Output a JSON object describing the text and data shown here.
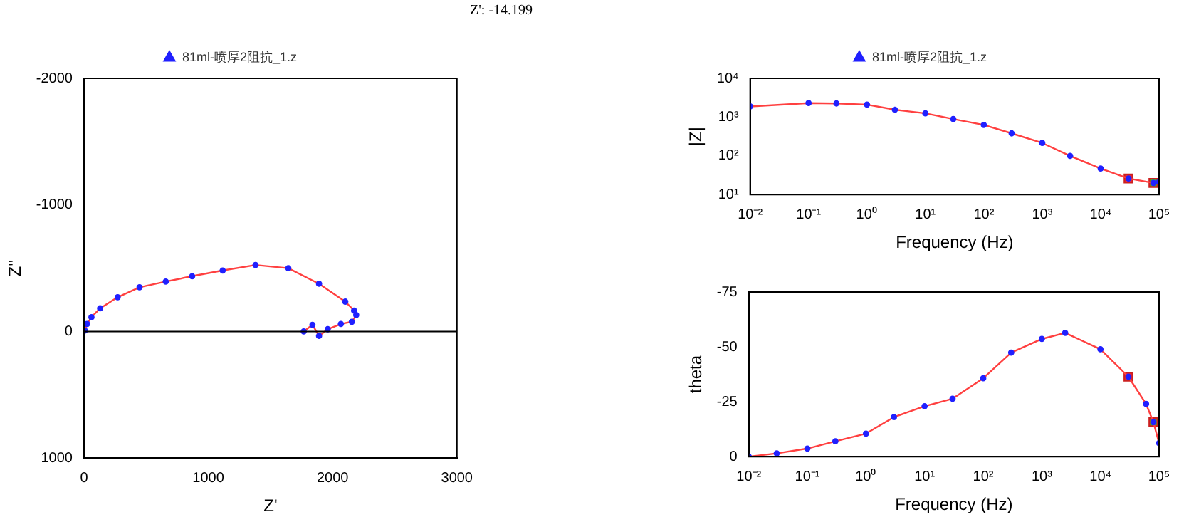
{
  "chart_data": [
    {
      "type": "line",
      "xlabel": "Z'",
      "ylabel": "Z''",
      "legend": "top",
      "marker": "circle",
      "grid": false,
      "annotations": [
        "Z': -14.199"
      ],
      "xlim": [
        0,
        3000
      ],
      "xticks": [
        0,
        1000,
        2000,
        3000
      ],
      "ylim": [
        1000,
        -2000
      ],
      "yticks": [
        1000,
        0,
        -1000,
        -2000
      ],
      "ref_lines": [
        {
          "axis": "y",
          "value": 0,
          "color": "#000000"
        }
      ],
      "series": [
        {
          "name": "81ml-喷厚2阻抗_1.z",
          "color": "#ff4040",
          "x": [
            7,
            25,
            60,
            130,
            271,
            447,
            658,
            870,
            1116,
            1380,
            1644,
            1891,
            2102,
            2173,
            2190,
            2155,
            2067,
            1961,
            1891,
            1838,
            1768
          ],
          "values": [
            -7,
            -60,
            -113,
            -183,
            -271,
            -349,
            -394,
            -437,
            -482,
            -525,
            -500,
            -377,
            -236,
            -165,
            -130,
            -77,
            -60,
            -18,
            35,
            -53,
            0
          ]
        }
      ]
    },
    {
      "type": "line",
      "xlabel": "Frequency (Hz)",
      "ylabel": "|Z|",
      "legend": "top",
      "log": "xy",
      "marker": "circle",
      "grid": false,
      "xlim": [
        0.01,
        100000
      ],
      "xticks": [
        {
          "value": 0.01,
          "label": "10⁻²"
        },
        {
          "value": 0.1,
          "label": "10⁻¹"
        },
        {
          "value": 1,
          "label": "10⁰"
        },
        {
          "value": 10,
          "label": "10¹"
        },
        {
          "value": 100,
          "label": "10²"
        },
        {
          "value": 1000,
          "label": "10³"
        },
        {
          "value": 10000,
          "label": "10⁴"
        },
        {
          "value": 100000,
          "label": "10⁵"
        }
      ],
      "ylim": [
        10,
        10000
      ],
      "yticks": [
        {
          "value": 10,
          "label": "10¹"
        },
        {
          "value": 100,
          "label": "10²"
        },
        {
          "value": 1000,
          "label": "10³"
        },
        {
          "value": 10000,
          "label": "10⁴"
        }
      ],
      "series": [
        {
          "name": "81ml-喷厚2阻抗_1.z",
          "color": "#ff4040",
          "x": [
            0.01,
            0.1,
            0.3,
            1,
            3,
            10,
            30,
            100,
            300,
            1000,
            3000,
            10000,
            30000,
            80000,
            100000
          ],
          "values": [
            1880,
            2300,
            2250,
            2100,
            1550,
            1250,
            890,
            630,
            380,
            215,
            100,
            47,
            26,
            20,
            21
          ]
        },
        {
          "type": "scatter",
          "marker": "square",
          "color": "#ff3030",
          "x": [
            30000
          ],
          "values": [
            26
          ]
        },
        {
          "type": "scatter",
          "marker": "square",
          "color": "#22dd22",
          "x": [
            80000
          ],
          "values": [
            20
          ]
        }
      ]
    },
    {
      "type": "line",
      "xlabel": "Frequency (Hz)",
      "ylabel": "theta",
      "log": "x",
      "marker": "circle",
      "grid": false,
      "xlim": [
        0.01,
        100000
      ],
      "xticks": [
        {
          "value": 0.01,
          "label": "10⁻²"
        },
        {
          "value": 0.1,
          "label": "10⁻¹"
        },
        {
          "value": 1,
          "label": "10⁰"
        },
        {
          "value": 10,
          "label": "10¹"
        },
        {
          "value": 100,
          "label": "10²"
        },
        {
          "value": 1000,
          "label": "10³"
        },
        {
          "value": 10000,
          "label": "10⁴"
        },
        {
          "value": 100000,
          "label": "10⁵"
        }
      ],
      "ylim": [
        0,
        -75
      ],
      "yticks": [
        0,
        -25,
        -50,
        -75
      ],
      "series": [
        {
          "color": "#ff4040",
          "x": [
            0.01,
            0.03,
            0.1,
            0.3,
            1,
            3,
            10,
            30,
            100,
            300,
            1000,
            2500,
            10000,
            30000,
            60000,
            80000,
            100000
          ],
          "values": [
            0,
            -1.5,
            -3.7,
            -7,
            -10.5,
            -18,
            -23,
            -26.4,
            -35.7,
            -47.4,
            -53.6,
            -56.4,
            -48.9,
            -36.4,
            -24,
            -15.7,
            -6.2
          ]
        },
        {
          "type": "scatter",
          "marker": "square",
          "color": "#ff3030",
          "x": [
            30000
          ],
          "values": [
            -36.4
          ]
        },
        {
          "type": "scatter",
          "marker": "square",
          "color": "#22dd22",
          "x": [
            80000
          ],
          "values": [
            -15.7
          ]
        }
      ]
    }
  ]
}
